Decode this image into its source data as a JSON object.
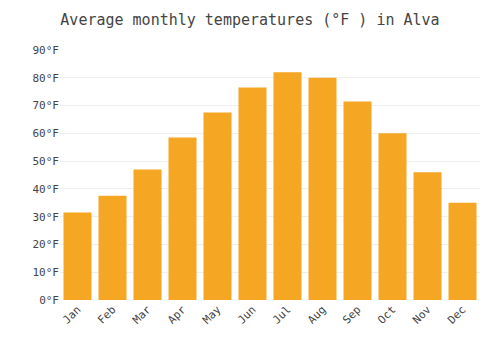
{
  "chart_data": {
    "type": "bar",
    "title": "Average monthly temperatures (°F ) in Alva",
    "categories": [
      "Jan",
      "Feb",
      "Mar",
      "Apr",
      "May",
      "Jun",
      "Jul",
      "Aug",
      "Sep",
      "Oct",
      "Nov",
      "Dec"
    ],
    "values": [
      31.5,
      37.5,
      47,
      58.5,
      67.5,
      76.5,
      82,
      80,
      71.5,
      60,
      46,
      35
    ],
    "color": "#F5A623",
    "ylim": [
      0,
      90
    ],
    "yticks": [
      {
        "value": 0,
        "label": "0°F"
      },
      {
        "value": 10,
        "label": "10°F"
      },
      {
        "value": 20,
        "label": "20°F"
      },
      {
        "value": 30,
        "label": "30°F"
      },
      {
        "value": 40,
        "label": "40°F"
      },
      {
        "value": 50,
        "label": "50°F"
      },
      {
        "value": 60,
        "label": "60°F"
      },
      {
        "value": 70,
        "label": "70°F"
      },
      {
        "value": 80,
        "label": "80°F"
      },
      {
        "value": 90,
        "label": "90°F"
      }
    ],
    "grid": true
  }
}
